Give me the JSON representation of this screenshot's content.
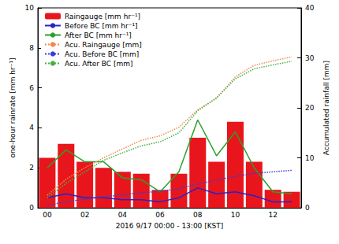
{
  "chart_data": {
    "type": "bar",
    "xlabel": "2016 9/17 00:00 - 13:00 [KST]",
    "ylabel": "one-hour rainrate [mm hr⁻¹]",
    "y2label": "Accumulated rainfall [mm]",
    "categories": [
      "00",
      null,
      "02",
      null,
      "04",
      null,
      "06",
      null,
      "08",
      null,
      "10",
      null,
      "12",
      null
    ],
    "ylim": [
      0,
      10
    ],
    "yticks": [
      0,
      2,
      4,
      6,
      8,
      10
    ],
    "y2lim": [
      0,
      40
    ],
    "y2ticks": [
      0,
      10,
      20,
      30,
      40
    ],
    "legend": "upper left",
    "grid": false,
    "series": [
      {
        "name": "Raingauge [mm hr⁻¹]",
        "type": "bar",
        "color": "#e8161c",
        "values": [
          2.5,
          3.2,
          2.3,
          2.0,
          1.8,
          1.7,
          0.9,
          1.7,
          3.5,
          2.3,
          4.3,
          2.3,
          0.9,
          0.8
        ]
      },
      {
        "name": "Before BC [mm hr⁻¹]",
        "type": "line",
        "color": "#2424c8",
        "line_style": "solid",
        "values": [
          0.5,
          0.7,
          0.5,
          0.5,
          0.4,
          0.4,
          0.3,
          0.5,
          1.0,
          0.7,
          0.8,
          0.6,
          0.3,
          0.3
        ]
      },
      {
        "name": "After BC [mm hr⁻¹]",
        "type": "line",
        "color": "#2ca02c",
        "line_style": "solid",
        "values": [
          2.0,
          2.9,
          2.3,
          2.3,
          1.5,
          1.4,
          0.8,
          1.8,
          4.4,
          2.6,
          3.8,
          2.0,
          0.8,
          0.7
        ]
      },
      {
        "name": "Acu. Raingauge [mm]",
        "type": "line",
        "color": "#f28a4e",
        "line_style": "dotted",
        "axis": "y2",
        "values": [
          2.5,
          5.7,
          8.0,
          10.0,
          11.8,
          13.5,
          14.4,
          16.1,
          19.6,
          21.9,
          26.2,
          28.5,
          29.4,
          30.2
        ]
      },
      {
        "name": "Acu. Before BC [mm]",
        "type": "line",
        "color": "#3b3be0",
        "line_style": "dotted",
        "axis": "y2",
        "values": [
          0.5,
          1.2,
          1.7,
          2.2,
          2.6,
          3.0,
          3.3,
          3.8,
          4.8,
          5.5,
          6.3,
          6.9,
          7.2,
          7.5
        ]
      },
      {
        "name": "Acu. After BC [mm]",
        "type": "line",
        "color": "#45b045",
        "line_style": "dotted",
        "axis": "y2",
        "values": [
          2.0,
          4.9,
          7.2,
          9.5,
          11.0,
          12.4,
          13.2,
          15.0,
          19.4,
          22.0,
          25.8,
          27.8,
          28.6,
          29.3
        ]
      }
    ]
  }
}
